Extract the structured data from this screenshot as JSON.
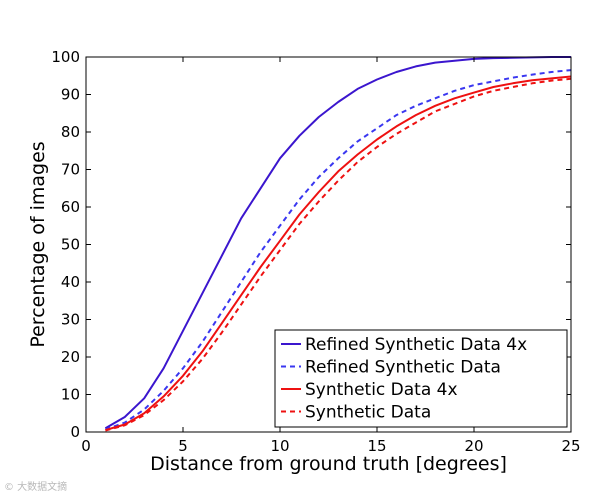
{
  "chart_data": {
    "type": "line",
    "xlabel": "Distance from ground truth [degrees]",
    "ylabel": "Percentage of images",
    "xlim": [
      0,
      25
    ],
    "ylim": [
      0,
      100
    ],
    "xticks": [
      0,
      5,
      10,
      15,
      20,
      25
    ],
    "yticks": [
      0,
      10,
      20,
      30,
      40,
      50,
      60,
      70,
      80,
      90,
      100
    ],
    "grid": false,
    "legend_position": "bottom-right",
    "x": [
      1,
      2,
      3,
      4,
      5,
      6,
      7,
      8,
      9,
      10,
      11,
      12,
      13,
      14,
      15,
      16,
      17,
      18,
      19,
      20,
      21,
      22,
      23,
      24,
      25
    ],
    "series": [
      {
        "name": "Refined Synthetic Data 4x",
        "color": "#3b16ce",
        "dash": "solid",
        "values": [
          1,
          4,
          9,
          17,
          27,
          37,
          47,
          57,
          65,
          73,
          79,
          84,
          88,
          91.5,
          94,
          96,
          97.5,
          98.5,
          99,
          99.5,
          99.7,
          99.8,
          99.9,
          100,
          100
        ]
      },
      {
        "name": "Refined Synthetic Data",
        "color": "#3a37f0",
        "dash": "dashed",
        "values": [
          0.7,
          2.5,
          6,
          11,
          17,
          24,
          32,
          40,
          48,
          55,
          62,
          68,
          73,
          77.5,
          81,
          84.5,
          87,
          89,
          91,
          92.5,
          93.5,
          94.5,
          95.3,
          96,
          96.5
        ]
      },
      {
        "name": "Synthetic Data 4x",
        "color": "#ee1111",
        "dash": "solid",
        "values": [
          0.5,
          2,
          5,
          9.5,
          15,
          21.5,
          29,
          36.5,
          44,
          51,
          58,
          64,
          69.5,
          74,
          78,
          81.5,
          84.5,
          87,
          89,
          90.5,
          92,
          93,
          93.8,
          94.3,
          94.8
        ]
      },
      {
        "name": "Synthetic Data",
        "color": "#ee1111",
        "dash": "dashed",
        "values": [
          0.4,
          1.8,
          4.5,
          8.5,
          13.5,
          19.5,
          26.5,
          34,
          41.5,
          48.5,
          55.5,
          61.5,
          67,
          72,
          76,
          79.5,
          82.5,
          85.5,
          87.5,
          89.5,
          91,
          92,
          93,
          93.7,
          94.2
        ]
      }
    ]
  },
  "watermark": "© 大数据文摘"
}
